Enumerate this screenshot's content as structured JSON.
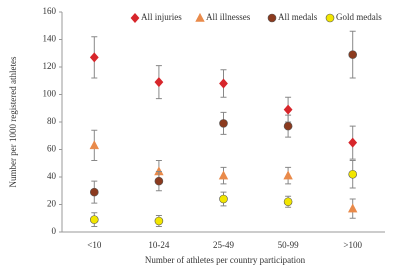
{
  "chart_data": {
    "type": "scatter",
    "ylabel": "Number per 1000 registered athletes",
    "xlabel": "Number of athletes per country participation",
    "categories": [
      "<10",
      "10-24",
      "25-49",
      "50-99",
      ">100"
    ],
    "ylim": [
      0,
      160
    ],
    "yticks": [
      0,
      20,
      40,
      60,
      80,
      100,
      120,
      140,
      160
    ],
    "legend": "top",
    "series": [
      {
        "name": "All injuries",
        "color": "#d7262b",
        "marker": "diamond",
        "values": [
          127,
          109,
          108,
          89,
          65
        ],
        "errors": [
          15,
          12,
          10,
          9,
          12
        ]
      },
      {
        "name": "All illnesses",
        "color": "#e98a4a",
        "marker": "triangle",
        "values": [
          63,
          44,
          41,
          41,
          17
        ],
        "errors": [
          11,
          8,
          6,
          6,
          7
        ]
      },
      {
        "name": "All medals",
        "color": "#8b3a1e",
        "marker": "circle",
        "values": [
          29,
          37,
          79,
          77,
          129
        ],
        "errors": [
          8,
          7,
          8,
          8,
          17
        ]
      },
      {
        "name": "Gold medals",
        "color": "#f2e600",
        "marker": "circle",
        "values": [
          9,
          8,
          24,
          22,
          42
        ],
        "errors": [
          5,
          4,
          5,
          4,
          10
        ]
      }
    ]
  }
}
